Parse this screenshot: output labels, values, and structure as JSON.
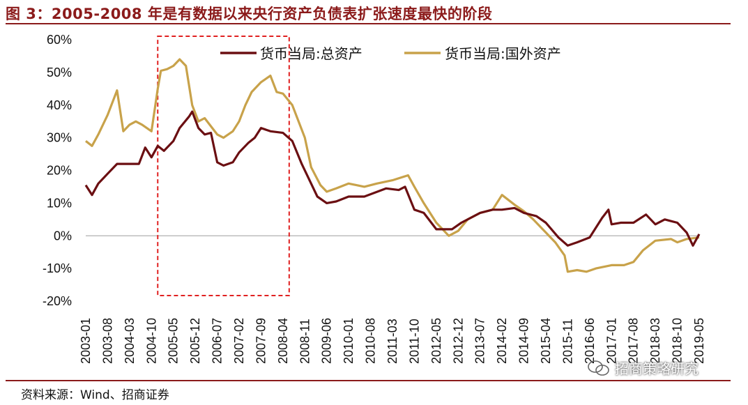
{
  "header": {
    "title": "图 3：2005-2008 年是有数据以来央行资产负债表扩张速度最快的阶段"
  },
  "footer": {
    "source": "资料来源：Wind、招商证券",
    "watermark": "招商策略研究"
  },
  "colors": {
    "title": "#8b1a1a",
    "total": "#6b0f12",
    "foreign": "#c8a24a",
    "highlight": "#e02020"
  },
  "chart_data": {
    "type": "line",
    "x_tick_labels": [
      "2003-01",
      "2003-08",
      "2004-03",
      "2004-10",
      "2005-05",
      "2005-12",
      "2006-07",
      "2007-02",
      "2007-09",
      "2008-04",
      "2008-11",
      "2009-06",
      "2010-01",
      "2010-08",
      "2011-03",
      "2011-10",
      "2012-05",
      "2012-12",
      "2013-07",
      "2014-02",
      "2014-09",
      "2015-04",
      "2015-11",
      "2016-06",
      "2017-01",
      "2017-08",
      "2018-03",
      "2018-10",
      "2019-05"
    ],
    "y_tick_labels": [
      "60%",
      "50%",
      "40%",
      "30%",
      "20%",
      "10%",
      "0%",
      "-10%",
      "-20%"
    ],
    "ylim": [
      -20,
      60
    ],
    "highlight": {
      "from": "2004-12",
      "to": "2008-06"
    },
    "series": [
      {
        "name": "货币当局:总资产",
        "points": [
          [
            "2003-01",
            15.5
          ],
          [
            "2003-03",
            12.5
          ],
          [
            "2003-05",
            16
          ],
          [
            "2003-08",
            19
          ],
          [
            "2003-11",
            22
          ],
          [
            "2004-03",
            22
          ],
          [
            "2004-06",
            22
          ],
          [
            "2004-08",
            27
          ],
          [
            "2004-10",
            24
          ],
          [
            "2004-12",
            27.5
          ],
          [
            "2005-02",
            26
          ],
          [
            "2005-05",
            29
          ],
          [
            "2005-07",
            33
          ],
          [
            "2005-10",
            36.5
          ],
          [
            "2005-11",
            38
          ],
          [
            "2006-01",
            33
          ],
          [
            "2006-03",
            31
          ],
          [
            "2006-05",
            31.5
          ],
          [
            "2006-07",
            22.5
          ],
          [
            "2006-09",
            21.5
          ],
          [
            "2006-12",
            22.5
          ],
          [
            "2007-02",
            25.5
          ],
          [
            "2007-05",
            28.5
          ],
          [
            "2007-07",
            30
          ],
          [
            "2007-09",
            33
          ],
          [
            "2007-12",
            32
          ],
          [
            "2008-04",
            31.5
          ],
          [
            "2008-07",
            29
          ],
          [
            "2008-10",
            22
          ],
          [
            "2009-01",
            16
          ],
          [
            "2009-03",
            12
          ],
          [
            "2009-06",
            10
          ],
          [
            "2009-09",
            10.5
          ],
          [
            "2010-01",
            12
          ],
          [
            "2010-06",
            12
          ],
          [
            "2011-01",
            14.5
          ],
          [
            "2011-05",
            14
          ],
          [
            "2011-07",
            15
          ],
          [
            "2011-10",
            8
          ],
          [
            "2012-01",
            7
          ],
          [
            "2012-05",
            2
          ],
          [
            "2012-10",
            2
          ],
          [
            "2013-01",
            4
          ],
          [
            "2013-07",
            7
          ],
          [
            "2013-11",
            8
          ],
          [
            "2014-02",
            8
          ],
          [
            "2014-06",
            8.5
          ],
          [
            "2014-09",
            7
          ],
          [
            "2015-01",
            6
          ],
          [
            "2015-04",
            4
          ],
          [
            "2015-08",
            -0.5
          ],
          [
            "2015-11",
            -3
          ],
          [
            "2016-02",
            -2
          ],
          [
            "2016-06",
            -0.5
          ],
          [
            "2016-10",
            5.5
          ],
          [
            "2016-12",
            8
          ],
          [
            "2017-01",
            3.5
          ],
          [
            "2017-04",
            4
          ],
          [
            "2017-08",
            4
          ],
          [
            "2017-12",
            6.5
          ],
          [
            "2018-03",
            3.5
          ],
          [
            "2018-06",
            5
          ],
          [
            "2018-08",
            4.5
          ],
          [
            "2018-10",
            4
          ],
          [
            "2019-01",
            1
          ],
          [
            "2019-03",
            -3
          ],
          [
            "2019-05",
            0.5
          ]
        ]
      },
      {
        "name": "货币当局:国外资产",
        "points": [
          [
            "2003-01",
            29
          ],
          [
            "2003-03",
            27.5
          ],
          [
            "2003-05",
            31
          ],
          [
            "2003-08",
            37
          ],
          [
            "2003-11",
            44.5
          ],
          [
            "2004-01",
            32
          ],
          [
            "2004-03",
            34
          ],
          [
            "2004-05",
            35
          ],
          [
            "2004-07",
            34
          ],
          [
            "2004-10",
            32
          ],
          [
            "2004-12",
            45
          ],
          [
            "2005-01",
            50.5
          ],
          [
            "2005-03",
            51
          ],
          [
            "2005-05",
            52
          ],
          [
            "2005-07",
            54
          ],
          [
            "2005-09",
            52
          ],
          [
            "2005-11",
            40
          ],
          [
            "2006-01",
            35
          ],
          [
            "2006-03",
            36
          ],
          [
            "2006-07",
            31
          ],
          [
            "2006-09",
            30
          ],
          [
            "2006-12",
            32
          ],
          [
            "2007-02",
            35
          ],
          [
            "2007-04",
            40
          ],
          [
            "2007-06",
            44
          ],
          [
            "2007-09",
            47
          ],
          [
            "2007-12",
            49
          ],
          [
            "2008-02",
            44
          ],
          [
            "2008-04",
            43.5
          ],
          [
            "2008-07",
            40
          ],
          [
            "2008-11",
            30
          ],
          [
            "2009-01",
            21
          ],
          [
            "2009-04",
            15.5
          ],
          [
            "2009-06",
            13.5
          ],
          [
            "2009-09",
            14.5
          ],
          [
            "2010-01",
            16
          ],
          [
            "2010-06",
            15
          ],
          [
            "2010-10",
            16
          ],
          [
            "2011-03",
            17
          ],
          [
            "2011-08",
            18.5
          ],
          [
            "2011-10",
            15
          ],
          [
            "2012-01",
            10
          ],
          [
            "2012-05",
            4
          ],
          [
            "2012-09",
            0
          ],
          [
            "2012-12",
            1.5
          ],
          [
            "2013-03",
            5
          ],
          [
            "2013-07",
            7
          ],
          [
            "2013-11",
            8
          ],
          [
            "2014-02",
            12.5
          ],
          [
            "2014-06",
            9.5
          ],
          [
            "2014-09",
            7.5
          ],
          [
            "2014-12",
            5
          ],
          [
            "2015-03",
            2
          ],
          [
            "2015-07",
            -2
          ],
          [
            "2015-10",
            -6
          ],
          [
            "2015-11",
            -11
          ],
          [
            "2016-02",
            -10.5
          ],
          [
            "2016-05",
            -11
          ],
          [
            "2016-08",
            -10
          ],
          [
            "2017-01",
            -9
          ],
          [
            "2017-05",
            -9
          ],
          [
            "2017-08",
            -8
          ],
          [
            "2017-11",
            -4.5
          ],
          [
            "2018-03",
            -1.5
          ],
          [
            "2018-08",
            -1
          ],
          [
            "2018-10",
            -2
          ],
          [
            "2019-01",
            -1
          ],
          [
            "2019-05",
            -0.5
          ]
        ]
      }
    ]
  }
}
